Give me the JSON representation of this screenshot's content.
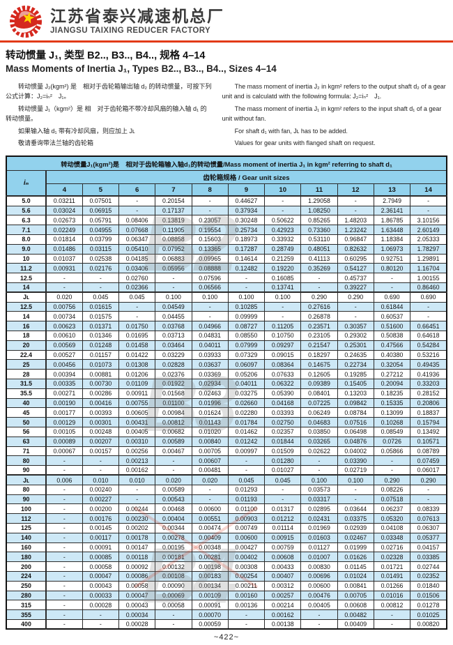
{
  "header": {
    "company_cn": "江苏省泰兴减速机总厂",
    "company_en": "JIANGSU TAIXING REDUCER FACTORY",
    "logo_icon": "red-gear-star-emblem"
  },
  "title": {
    "cn": "转动惯量 J₁, 类型 B2.., B3.., B4.., 规格 4–14",
    "en": "Mass Moments of Inertia J₁, Types B2.., B3.., B4.., Sizes 4–14"
  },
  "intro": {
    "cn_p1": "转动惯量 J₂(kgm²) 是　相对于齿轮箱输出轴 d₂ 的转动惯量，可按下列公式计算：J₂=iₙ²　J₁。",
    "cn_p2": "转动惯量 J₁（kgm²）是 相　对于齿轮箱不带冷却风扇的输入轴 d₁ 的转动惯量。",
    "cn_p3": "如果输入轴 d₁ 带有冷却风扇，则应加上 Jʟ",
    "cn_p4": "敬请垂询带法兰轴的齿轮箱",
    "en_p1": "The mass moment of inertia J₂ in kgm² refers to the output shaft d₂ of a gear unit and is calculatd with the following formula: J₂=iₙ²　J₁.",
    "en_p2": "The mass moment of inertia J₁ in kgm² refers to the input shaft d₁ of a gear unit without fan.",
    "en_p3": "For shaft d₁ with fan, Jʟ has to be added.",
    "en_p4": "Values for gear units with flanged shaft on request."
  },
  "table": {
    "title": "转动惯量J₁(kgm²)是　相对于齿轮箱输入轴d₁的转动惯量/Mass moment of inertia J₁ in kgm² referring to shaft d₁",
    "subtitle": "齿轮箱规格 / Gear unit sizes",
    "ratio_header": "iₙ",
    "size_columns": [
      "4",
      "5",
      "6",
      "7",
      "8",
      "9",
      "10",
      "11",
      "12",
      "13",
      "14"
    ],
    "rows": [
      {
        "label": "5.0",
        "values": [
          "0.03211",
          "0.07501",
          "-",
          "0.20154",
          "-",
          "0.44627",
          "-",
          "1.29058",
          "-",
          "2.7949",
          "-"
        ]
      },
      {
        "label": "5.6",
        "values": [
          "0.03024",
          "0.06915",
          "-",
          "0.17137",
          "-",
          "0.37934",
          "-",
          "1.08250",
          "-",
          "2.36141",
          "-"
        ]
      },
      {
        "label": "6.3",
        "values": [
          "0.02673",
          "0.05791",
          "0.08406",
          "0.13819",
          "0.23057",
          "0.30248",
          "0.50622",
          "0.85265",
          "1.48203",
          "1.86785",
          "3.10156"
        ]
      },
      {
        "label": "7.1",
        "values": [
          "0.02249",
          "0.04955",
          "0.07668",
          "0.11905",
          "0.19554",
          "0.25734",
          "0.42923",
          "0.73360",
          "1.23242",
          "1.63448",
          "2.60149"
        ]
      },
      {
        "label": "8.0",
        "values": [
          "0.01814",
          "0.03799",
          "0.06347",
          "0.08858",
          "0.15603",
          "0.18973",
          "0.33932",
          "0.53110",
          "0.96847",
          "1.18384",
          "2.05333"
        ]
      },
      {
        "label": "9.0",
        "values": [
          "0.01486",
          "0.03115",
          "0.05410",
          "0.07952",
          "0.13365",
          "0.17287",
          "0.28749",
          "0.48051",
          "0.82632",
          "1.06973",
          "1.78297"
        ]
      },
      {
        "label": "10",
        "values": [
          "0.01037",
          "0.02538",
          "0.04185",
          "0.06883",
          "0.09965",
          "0.14614",
          "0.21259",
          "0.41113",
          "0.60295",
          "0.92751",
          "1.29891"
        ]
      },
      {
        "label": "11.2",
        "values": [
          "0.00931",
          "0.02176",
          "0.03406",
          "0.05956",
          "0.08888",
          "0.12482",
          "0.19220",
          "0.35269",
          "0.54127",
          "0.80120",
          "1.16704"
        ]
      },
      {
        "label": "12.5",
        "values": [
          "-",
          "-",
          "0.02760",
          "-",
          "0.07596",
          "-",
          "0.16085",
          "-",
          "0.45737",
          "-",
          "1.00155"
        ]
      },
      {
        "label": "14",
        "values": [
          "-",
          "-",
          "0.02366",
          "-",
          "0.06566",
          "-",
          "0.13741",
          "-",
          "0.39227",
          "-",
          "0.86460"
        ]
      },
      {
        "label": "Jʟ",
        "values": [
          "0.020",
          "0.045",
          "0.045",
          "0.100",
          "0.100",
          "0.100",
          "0.100",
          "0.290",
          "0.290",
          "0.690",
          "0.690"
        ]
      },
      {
        "label": "12.5",
        "values": [
          "0.00756",
          "0.01615",
          "-",
          "0.04549",
          "-",
          "0.10285",
          "-",
          "0.27616",
          "-",
          "0.61844",
          "-"
        ]
      },
      {
        "label": "14",
        "values": [
          "0.00734",
          "0.01575",
          "-",
          "0.04455",
          "-",
          "0.09999",
          "-",
          "0.26878",
          "-",
          "0.60537",
          "-"
        ]
      },
      {
        "label": "16",
        "values": [
          "0.00623",
          "0.01371",
          "0.01750",
          "0.03768",
          "0.04966",
          "0.08727",
          "0.11205",
          "0.23571",
          "0.30357",
          "0.51600",
          "0.66451"
        ]
      },
      {
        "label": "18",
        "values": [
          "0.00610",
          "0.01346",
          "0.01695",
          "0.03713",
          "0.04831",
          "0.08550",
          "0.10750",
          "0.23105",
          "0.29302",
          "0.50838",
          "0.64618"
        ]
      },
      {
        "label": "20",
        "values": [
          "0.00569",
          "0.01248",
          "0.01458",
          "0.03464",
          "0.04011",
          "0.07999",
          "0.09297",
          "0.21547",
          "0.25301",
          "0.47566",
          "0.54284"
        ]
      },
      {
        "label": "22.4",
        "values": [
          "0.00527",
          "0.01157",
          "0.01422",
          "0.03229",
          "0.03933",
          "0.07329",
          "0.09015",
          "0.18297",
          "0.24635",
          "0.40380",
          "0.53216"
        ]
      },
      {
        "label": "25",
        "values": [
          "0.00456",
          "0.01073",
          "0.01308",
          "0.02828",
          "0.03637",
          "0.06097",
          "0.08364",
          "0.14675",
          "0.22734",
          "0.32054",
          "0.49435"
        ]
      },
      {
        "label": "28",
        "values": [
          "0.00394",
          "0.00881",
          "0.01206",
          "0.02376",
          "0.03369",
          "0.05206",
          "0.07633",
          "0.12605",
          "0.19285",
          "0.27212",
          "0.41936"
        ]
      },
      {
        "label": "31.5",
        "values": [
          "0.00335",
          "0.00730",
          "0.01109",
          "0.01922",
          "0.02934",
          "0.04011",
          "0.06322",
          "0.09389",
          "0.15405",
          "0.20094",
          "0.33203"
        ]
      },
      {
        "label": "35.5",
        "values": [
          "0.00271",
          "0.00286",
          "0.00911",
          "0.01568",
          "0.02463",
          "0.03275",
          "0.05390",
          "0.08401",
          "0.13203",
          "0.18235",
          "0.28152"
        ]
      },
      {
        "label": "40",
        "values": [
          "0.00190",
          "0.00416",
          "0.00755",
          "0.01100",
          "0.01996",
          "0.02660",
          "0.04168",
          "0.07225",
          "0.09842",
          "0.15335",
          "0.20806"
        ]
      },
      {
        "label": "45",
        "values": [
          "0.00177",
          "0.00393",
          "0.00605",
          "0.00984",
          "0.01624",
          "0.02280",
          "0.03393",
          "0.06249",
          "0.08784",
          "0.13099",
          "0.18837"
        ]
      },
      {
        "label": "50",
        "values": [
          "0.00129",
          "0.00301",
          "0.00431",
          "0.00812",
          "0.01143",
          "0.01784",
          "0.02750",
          "0.04683",
          "0.07516",
          "0.10268",
          "0.15794"
        ]
      },
      {
        "label": "56",
        "values": [
          "0.00105",
          "0.00248",
          "0.00405",
          "0.00682",
          "0.01020",
          "0.01462",
          "0.02357",
          "0.03850",
          "0.06498",
          "0.08549",
          "0.13492"
        ]
      },
      {
        "label": "63",
        "values": [
          "0.00089",
          "0.00207",
          "0.00310",
          "0.00589",
          "0.00840",
          "0.01242",
          "0.01844",
          "0.03265",
          "0.04876",
          "0.0726",
          "0.10571"
        ]
      },
      {
        "label": "71",
        "values": [
          "0.00067",
          "0.00157",
          "0.00256",
          "0.00467",
          "0.00705",
          "0.00997",
          "0.01509",
          "0.02622",
          "0.04002",
          "0.05866",
          "0.08789"
        ]
      },
      {
        "label": "80",
        "values": [
          "-",
          "-",
          "0.00213",
          "-",
          "0.00607",
          "-",
          "0.01280",
          "-",
          "0.03390",
          "-",
          "0.07459"
        ]
      },
      {
        "label": "90",
        "values": [
          "-",
          "-",
          "0.00162",
          "-",
          "0.00481",
          "-",
          "0.01027",
          "-",
          "0.02719",
          "-",
          "0.06017"
        ]
      },
      {
        "label": "Jʟ",
        "values": [
          "0.006",
          "0.010",
          "0.010",
          "0.020",
          "0.020",
          "0.045",
          "0.045",
          "0.100",
          "0.100",
          "0.290",
          "0.290"
        ]
      },
      {
        "label": "80",
        "values": [
          "-",
          "0.00240",
          "-",
          "0.00589",
          "-",
          "0.01293",
          "-",
          "0.03573",
          "-",
          "0.08226",
          "-"
        ]
      },
      {
        "label": "90",
        "values": [
          "-",
          "0.00227",
          "-",
          "0.00543",
          "-",
          "0.01193",
          "-",
          "0.03317",
          "-",
          "0.07518",
          "-"
        ]
      },
      {
        "label": "100",
        "values": [
          "-",
          "0.00200",
          "0.00244",
          "0.00468",
          "0.00600",
          "0.01100",
          "0.01317",
          "0.02895",
          "0.03644",
          "0.06237",
          "0.08339"
        ]
      },
      {
        "label": "112",
        "values": [
          "-",
          "0.00176",
          "0.00230",
          "0.00404",
          "0.00551",
          "0.00903",
          "0.01212",
          "0.02431",
          "0.03375",
          "0.05320",
          "0.07613"
        ]
      },
      {
        "label": "125",
        "values": [
          "-",
          "0.00145",
          "0.00202",
          "0.00344",
          "0.00474",
          "0.00749",
          "0.01114",
          "0.01969",
          "0.02939",
          "0.04108",
          "0.06307"
        ]
      },
      {
        "label": "140",
        "values": [
          "-",
          "0.00117",
          "0.00178",
          "0.00278",
          "0.00409",
          "0.00600",
          "0.00915",
          "0.01603",
          "0.02467",
          "0.03348",
          "0.05377"
        ]
      },
      {
        "label": "160",
        "values": [
          "-",
          "0.00091",
          "0.00147",
          "0.00195",
          "0.00348",
          "0.00427",
          "0.00759",
          "0.01127",
          "0.01999",
          "0.02716",
          "0.04157"
        ]
      },
      {
        "label": "180",
        "values": [
          "-",
          "0.00085",
          "0.00118",
          "0.00181",
          "0.00281",
          "0.00402",
          "0.00608",
          "0.01007",
          "0.01626",
          "0.02328",
          "0.03385"
        ]
      },
      {
        "label": "200",
        "values": [
          "-",
          "0.00058",
          "0.00092",
          "0.00132",
          "0.00198",
          "0.00308",
          "0.00433",
          "0.00830",
          "0.01145",
          "0.01721",
          "0.02744"
        ]
      },
      {
        "label": "224",
        "values": [
          "-",
          "0.00047",
          "0.00086",
          "0.00108",
          "0.00183",
          "0.00254",
          "0.00407",
          "0.00696",
          "0.01024",
          "0.01491",
          "0.02352"
        ]
      },
      {
        "label": "250",
        "values": [
          "-",
          "0.00043",
          "0.00058",
          "0.00090",
          "0.00134",
          "0.00211",
          "0.00312",
          "0.00600",
          "0.00841",
          "0.01266",
          "0.01840"
        ]
      },
      {
        "label": "280",
        "values": [
          "-",
          "0.00033",
          "0.00047",
          "0.00069",
          "0.00109",
          "0.00160",
          "0.00257",
          "0.00476",
          "0.00705",
          "0.01016",
          "0.01506"
        ]
      },
      {
        "label": "315",
        "values": [
          "-",
          "0.00028",
          "0.00043",
          "0.00058",
          "0.00091",
          "0.00136",
          "0.00214",
          "0.00405",
          "0.00608",
          "0.00812",
          "0.01278"
        ]
      },
      {
        "label": "355",
        "values": [
          "-",
          "-",
          "0.00034",
          "-",
          "0.00070",
          "-",
          "0.00162",
          "-",
          "0.00482",
          "-",
          "0.01025"
        ]
      },
      {
        "label": "400",
        "values": [
          "-",
          "-",
          "0.00028",
          "-",
          "0.00059",
          "-",
          "0.00138",
          "-",
          "0.00409",
          "-",
          "0.00820"
        ]
      }
    ]
  },
  "watermarks": [
    "B2",
    "B3",
    "B4"
  ],
  "footer": {
    "page_number": "~422~"
  },
  "colors": {
    "accent_red": "#e23a17",
    "header_blue": "#92d2ed",
    "stripe_blue": "#cde8f6",
    "logo_red": "#d5281e",
    "star_yellow": "#ffd400"
  }
}
